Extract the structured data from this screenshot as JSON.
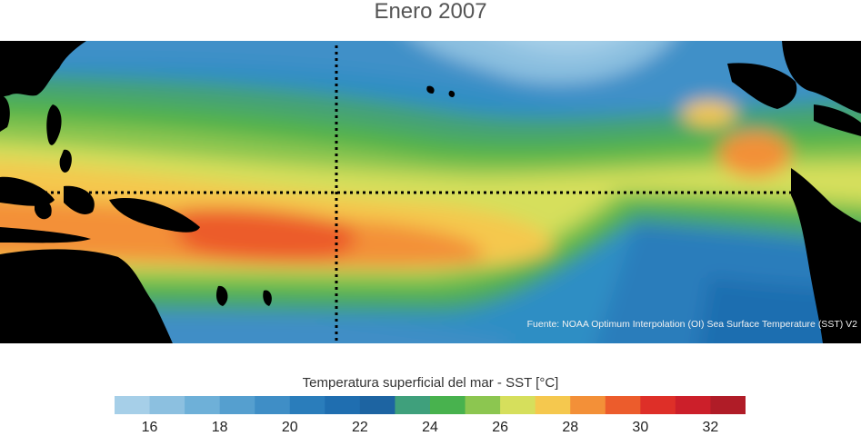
{
  "title": "Enero 2007",
  "source": "Fuente: NOAA Optimum Interpolation (OI) Sea Surface Temperature (SST) V2",
  "colorbar": {
    "label": "Temperatura superficial del mar - SST  [°C]",
    "min": 15,
    "max": 33,
    "ticks": [
      "16",
      "18",
      "20",
      "22",
      "24",
      "26",
      "28",
      "30",
      "32"
    ],
    "colors": [
      "#a6cfe8",
      "#8cc0e0",
      "#6eb0d8",
      "#559fcf",
      "#3f8ec6",
      "#2a7dbb",
      "#1f6eb0",
      "#1d64a2",
      "#3fa07c",
      "#48b24e",
      "#8cc650",
      "#d6df5c",
      "#f5c84e",
      "#f39038",
      "#ec5c2c",
      "#de2f28",
      "#cc1f2a",
      "#b01c27"
    ]
  }
}
